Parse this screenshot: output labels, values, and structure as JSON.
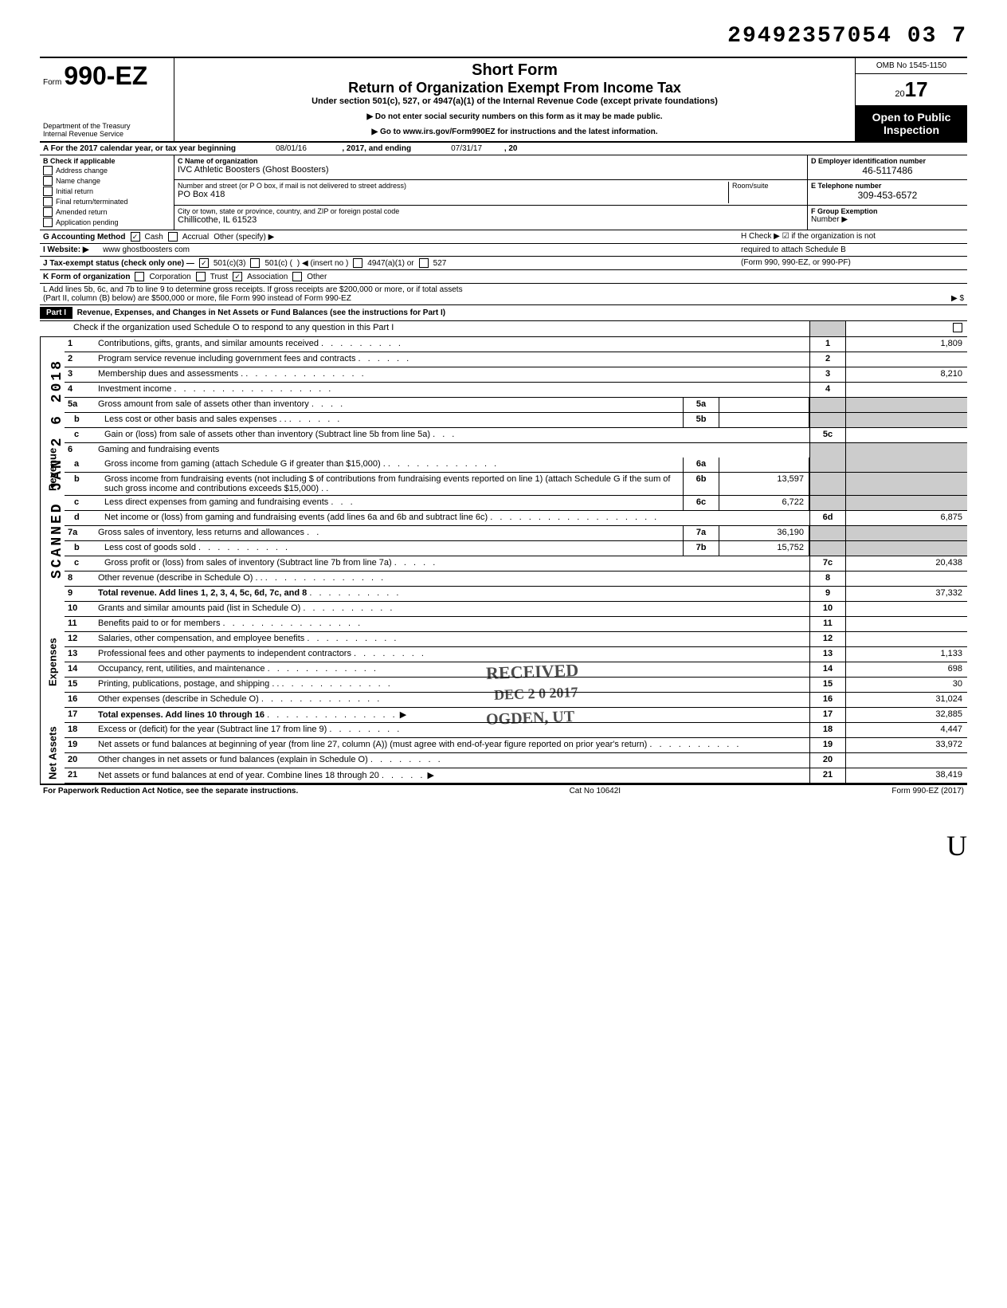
{
  "top_number": "29492357054 03  7",
  "header": {
    "form_label": "Form",
    "form_number": "990-EZ",
    "dept1": "Department of the Treasury",
    "dept2": "Internal Revenue Service",
    "short_form": "Short Form",
    "title": "Return of Organization Exempt From Income Tax",
    "subtitle": "Under section 501(c), 527, or 4947(a)(1) of the Internal Revenue Code (except private foundations)",
    "arrow1": "▶ Do not enter social security numbers on this form as it may be made public.",
    "arrow2": "▶ Go to www.irs.gov/Form990EZ for instructions and the latest information.",
    "omb": "OMB No 1545-1150",
    "year_prefix": "20",
    "year_suffix": "17",
    "open1": "Open to Public",
    "open2": "Inspection"
  },
  "line_a": {
    "prefix": "A  For the 2017 calendar year, or tax year beginning",
    "begin": "08/01/16",
    "mid": ", 2017, and ending",
    "end": "07/31/17",
    "suffix": ", 20"
  },
  "section_b": {
    "header": "B  Check if applicable",
    "items": [
      "Address change",
      "Name change",
      "Initial return",
      "Final return/terminated",
      "Amended return",
      "Application pending"
    ]
  },
  "section_c": {
    "name_label": "C  Name of organization",
    "name": "IVC Athletic Boosters (Ghost Boosters)",
    "street_label": "Number and street (or P O  box, if mail is not delivered to street address)",
    "street": "PO Box 418",
    "room_label": "Room/suite",
    "city_label": "City or town, state or province, country, and ZIP or foreign postal code",
    "city": "Chillicothe, IL  61523"
  },
  "section_d": {
    "label": "D Employer identification number",
    "value": "46-5117486"
  },
  "section_e": {
    "label": "E  Telephone number",
    "value": "309-453-6572"
  },
  "section_f": {
    "label": "F  Group Exemption",
    "label2": "Number  ▶"
  },
  "row_g": {
    "label": "G  Accounting Method",
    "cash": "Cash",
    "accrual": "Accrual",
    "other": "Other (specify) ▶"
  },
  "row_h": {
    "text": "H  Check ▶ ☑ if the organization is not",
    "text2": "required to attach Schedule B",
    "text3": "(Form 990, 990-EZ, or 990-PF)"
  },
  "row_i": {
    "label": "I  Website: ▶",
    "value": "www ghostboosters com"
  },
  "row_j": {
    "label": "J  Tax-exempt status (check only one) —",
    "501c3": "501(c)(3)",
    "501c": "501(c) (",
    "insert": ") ◀ (insert no )",
    "4947": "4947(a)(1) or",
    "527": "527"
  },
  "row_k": {
    "label": "K  Form of organization",
    "corp": "Corporation",
    "trust": "Trust",
    "assoc": "Association",
    "other": "Other"
  },
  "row_l": {
    "text1": "L  Add lines 5b, 6c, and 7b to line 9 to determine gross receipts. If gross receipts are $200,000 or more, or if total assets",
    "text2": "(Part II, column (B) below) are $500,000 or more, file Form 990 instead of Form 990-EZ",
    "arrow": "▶  $"
  },
  "part1": {
    "label": "Part I",
    "title": "Revenue, Expenses, and Changes in Net Assets or Fund Balances (see the instructions for Part I)",
    "check_line": "Check if the organization used Schedule O to respond to any question in this Part I"
  },
  "side_scanned": "SCANNED  JAN 2 6 2018",
  "lines": {
    "1": {
      "desc": "Contributions, gifts, grants, and similar amounts received",
      "val": "1,809"
    },
    "2": {
      "desc": "Program service revenue including government fees and contracts",
      "val": ""
    },
    "3": {
      "desc": "Membership dues and assessments .",
      "val": "8,210"
    },
    "4": {
      "desc": "Investment income",
      "val": ""
    },
    "5a": {
      "desc": "Gross amount from sale of assets other than inventory",
      "ival": ""
    },
    "5b": {
      "desc": "Less  cost or other basis and sales expenses . .",
      "ival": ""
    },
    "5c": {
      "desc": "Gain or (loss) from sale of assets other than inventory (Subtract line 5b from line 5a)",
      "val": ""
    },
    "6": {
      "desc": "Gaming and fundraising events"
    },
    "6a": {
      "desc": "Gross income from gaming (attach Schedule G if greater than $15,000) .",
      "ival": ""
    },
    "6b": {
      "desc": "Gross income from fundraising events (not including  $                    of contributions from fundraising events reported on line 1) (attach Schedule G if the sum of such gross income and contributions exceeds $15,000) . .",
      "ival": "13,597"
    },
    "6c": {
      "desc": "Less  direct expenses from gaming and fundraising events",
      "ival": "6,722"
    },
    "6d": {
      "desc": "Net income or (loss) from gaming and fundraising events (add lines 6a and 6b and subtract line 6c)",
      "val": "6,875"
    },
    "7a": {
      "desc": "Gross sales of inventory, less returns and allowances",
      "ival": "36,190"
    },
    "7b": {
      "desc": "Less  cost of goods sold",
      "ival": "15,752"
    },
    "7c": {
      "desc": "Gross profit or (loss) from sales of inventory (Subtract line 7b from line 7a)",
      "val": "20,438"
    },
    "8": {
      "desc": "Other revenue (describe in Schedule O) . .",
      "val": ""
    },
    "9": {
      "desc": "Total revenue. Add lines 1, 2, 3, 4, 5c, 6d, 7c, and 8",
      "val": "37,332"
    },
    "10": {
      "desc": "Grants and similar amounts paid (list in Schedule O)",
      "val": ""
    },
    "11": {
      "desc": "Benefits paid to or for members",
      "val": ""
    },
    "12": {
      "desc": "Salaries, other compensation, and employee benefits",
      "val": ""
    },
    "13": {
      "desc": "Professional fees and other payments to independent contractors",
      "val": "1,133"
    },
    "14": {
      "desc": "Occupancy, rent, utilities, and maintenance",
      "val": "698"
    },
    "15": {
      "desc": "Printing, publications, postage, and shipping . .",
      "val": "30"
    },
    "16": {
      "desc": "Other expenses (describe in Schedule O)",
      "val": "31,024"
    },
    "17": {
      "desc": "Total expenses. Add lines 10 through 16",
      "val": "32,885"
    },
    "18": {
      "desc": "Excess or (deficit) for the year (Subtract line 17 from line 9)",
      "val": "4,447"
    },
    "19": {
      "desc": "Net assets or fund balances at beginning of year (from line 27, column (A)) (must agree with end-of-year figure reported on prior year's return)",
      "val": "33,972"
    },
    "20": {
      "desc": "Other changes in net assets or fund balances (explain in Schedule O)",
      "val": ""
    },
    "21": {
      "desc": "Net assets or fund balances at end of year. Combine lines 18 through 20",
      "val": "38,419"
    }
  },
  "sections": {
    "revenue": "Revenue",
    "expenses": "Expenses",
    "net_assets": "Net Assets"
  },
  "footer": {
    "left": "For Paperwork Reduction Act Notice, see the separate instructions.",
    "mid": "Cat  No  10642I",
    "right": "Form 990-EZ (2017)"
  },
  "stamps": {
    "received": "RECEIVED",
    "date": "DEC 2 0 2017",
    "ogden": "OGDEN, UT"
  },
  "handwrite": "U"
}
